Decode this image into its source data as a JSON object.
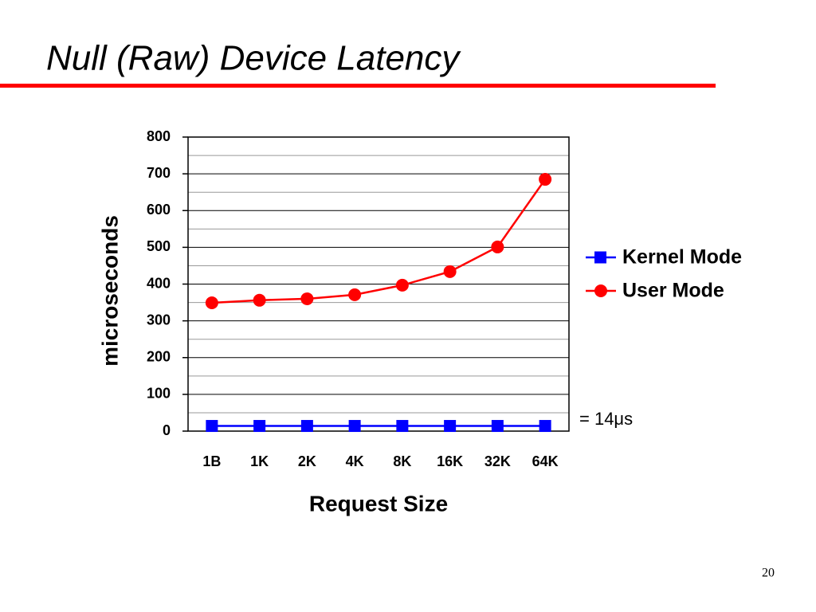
{
  "chart_data": {
    "type": "line",
    "title": "Null (Raw) Device Latency",
    "x_label": "Request Size",
    "y_label": "microseconds",
    "categories": [
      "1B",
      "1K",
      "2K",
      "4K",
      "8K",
      "16K",
      "32K",
      "64K"
    ],
    "series": [
      {
        "name": "Kernel Mode",
        "color": "#0000ff",
        "marker": "square",
        "values": [
          14,
          14,
          14,
          14,
          14,
          14,
          14,
          14
        ]
      },
      {
        "name": "User Mode",
        "color": "#ff0000",
        "marker": "circle",
        "values": [
          349,
          356,
          360,
          371,
          397,
          434,
          501,
          685
        ]
      }
    ],
    "annotation": "= 14μs",
    "ylim": [
      0,
      800
    ],
    "yticks": [
      0,
      100,
      200,
      300,
      400,
      500,
      600,
      700,
      800
    ],
    "grid": true,
    "legend": "right"
  },
  "page_number": 20
}
